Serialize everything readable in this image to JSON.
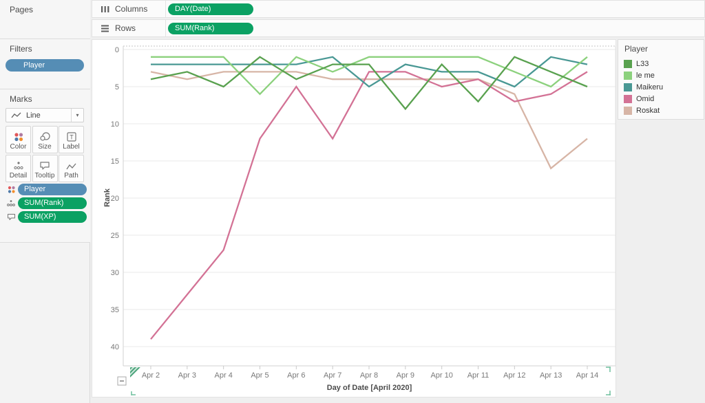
{
  "pages": {
    "title": "Pages"
  },
  "filters": {
    "title": "Filters",
    "pill": "Player"
  },
  "marks": {
    "title": "Marks",
    "mark_type": "Line",
    "buttons": [
      {
        "label": "Color"
      },
      {
        "label": "Size"
      },
      {
        "label": "Label"
      },
      {
        "label": "Detail"
      },
      {
        "label": "Tooltip"
      },
      {
        "label": "Path"
      }
    ],
    "pills": [
      {
        "label": "Player",
        "type": "blue"
      },
      {
        "label": "SUM(Rank)",
        "type": "green"
      },
      {
        "label": "SUM(XP)",
        "type": "green"
      }
    ]
  },
  "shelves": {
    "columns_label": "Columns",
    "columns_pill": "DAY(Date)",
    "rows_label": "Rows",
    "rows_pill": "SUM(Rank)"
  },
  "legend": {
    "title": "Player",
    "items": [
      {
        "label": "L33",
        "color": "#59A14F"
      },
      {
        "label": "le me",
        "color": "#8CD17D"
      },
      {
        "label": "Maikeru",
        "color": "#499894"
      },
      {
        "label": "Omid",
        "color": "#D37295"
      },
      {
        "label": "Roskat",
        "color": "#D7B5A6"
      }
    ]
  },
  "colors": {
    "pill_green": "#0ba163",
    "pill_blue": "#558db5",
    "grid": "#e9e9e9",
    "axis": "#d2d2d2",
    "tick_text": "#787878",
    "handle_green": "#6fbf9e"
  },
  "chart_data": {
    "type": "line",
    "title": "",
    "xlabel": "Day of Date [April 2020]",
    "ylabel": "Rank",
    "x_categories": [
      "Apr 2",
      "Apr 3",
      "Apr 4",
      "Apr 5",
      "Apr 6",
      "Apr 7",
      "Apr 8",
      "Apr 9",
      "Apr 10",
      "Apr 11",
      "Apr 12",
      "Apr 13",
      "Apr 14"
    ],
    "y_axis": {
      "min": 0,
      "max": 40,
      "ticks": [
        0,
        5,
        10,
        15,
        20,
        25,
        30,
        35,
        40
      ],
      "reversed": true
    },
    "grid": "horizontal",
    "legend_position": "right",
    "series": [
      {
        "name": "L33",
        "color": "#59A14F",
        "values": [
          4,
          3,
          5,
          1,
          4,
          2,
          2,
          8,
          2,
          7,
          1,
          3,
          5
        ]
      },
      {
        "name": "le me",
        "color": "#8CD17D",
        "values": [
          1,
          1,
          1,
          6,
          1,
          3,
          1,
          1,
          1,
          1,
          3,
          5,
          1
        ]
      },
      {
        "name": "Maikeru",
        "color": "#499894",
        "values": [
          2,
          2,
          2,
          2,
          2,
          1,
          5,
          2,
          3,
          3,
          5,
          1,
          2
        ]
      },
      {
        "name": "Omid",
        "color": "#D37295",
        "values": [
          39,
          33,
          27,
          12,
          5,
          12,
          3,
          3,
          5,
          4,
          7,
          6,
          3
        ]
      },
      {
        "name": "Roskat",
        "color": "#D7B5A6",
        "values": [
          3,
          4,
          3,
          3,
          3,
          4,
          4,
          4,
          4,
          4,
          6,
          16,
          12
        ]
      }
    ]
  }
}
